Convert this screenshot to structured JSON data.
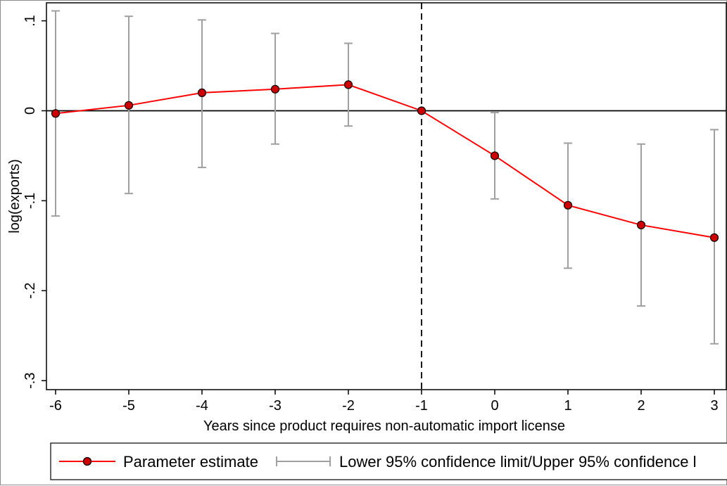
{
  "chart_data": {
    "type": "line",
    "title": "",
    "xlabel": "Years since product requires non-automatic import license",
    "ylabel": "log(exports)",
    "x": [
      -6,
      -5,
      -4,
      -3,
      -2,
      -1,
      0,
      1,
      2,
      3
    ],
    "x_ticks": [
      "-6",
      "-5",
      "-4",
      "-3",
      "-2",
      "-1",
      "0",
      "1",
      "2",
      "3"
    ],
    "y_ticks": [
      0.1,
      0,
      -0.1,
      -0.2,
      -0.3
    ],
    "y_tick_labels": [
      ".1",
      "0",
      "-.1",
      "-.2",
      "-.3"
    ],
    "xlim": [
      -6,
      3
    ],
    "ylim": [
      -0.31,
      0.12
    ],
    "reference_lines": {
      "horizontal_y": 0,
      "vertical_x": -1
    },
    "grid": false,
    "legend_position": "bottom",
    "series": [
      {
        "name": "Parameter estimate",
        "color": "#ff0000",
        "marker_color": "#cc0000",
        "values": [
          -0.003,
          0.006,
          0.02,
          0.024,
          0.029,
          0.0,
          -0.05,
          -0.105,
          -0.127,
          -0.141
        ]
      },
      {
        "name": "Lower 95% confidence limit/Upper 95% confidence l",
        "color": "#a0a0a0",
        "lower": [
          -0.117,
          -0.092,
          -0.063,
          -0.037,
          -0.017,
          0.0,
          -0.098,
          -0.175,
          -0.217,
          -0.259
        ],
        "upper": [
          0.111,
          0.105,
          0.101,
          0.086,
          0.075,
          0.0,
          -0.002,
          -0.036,
          -0.037,
          -0.021
        ]
      }
    ]
  }
}
